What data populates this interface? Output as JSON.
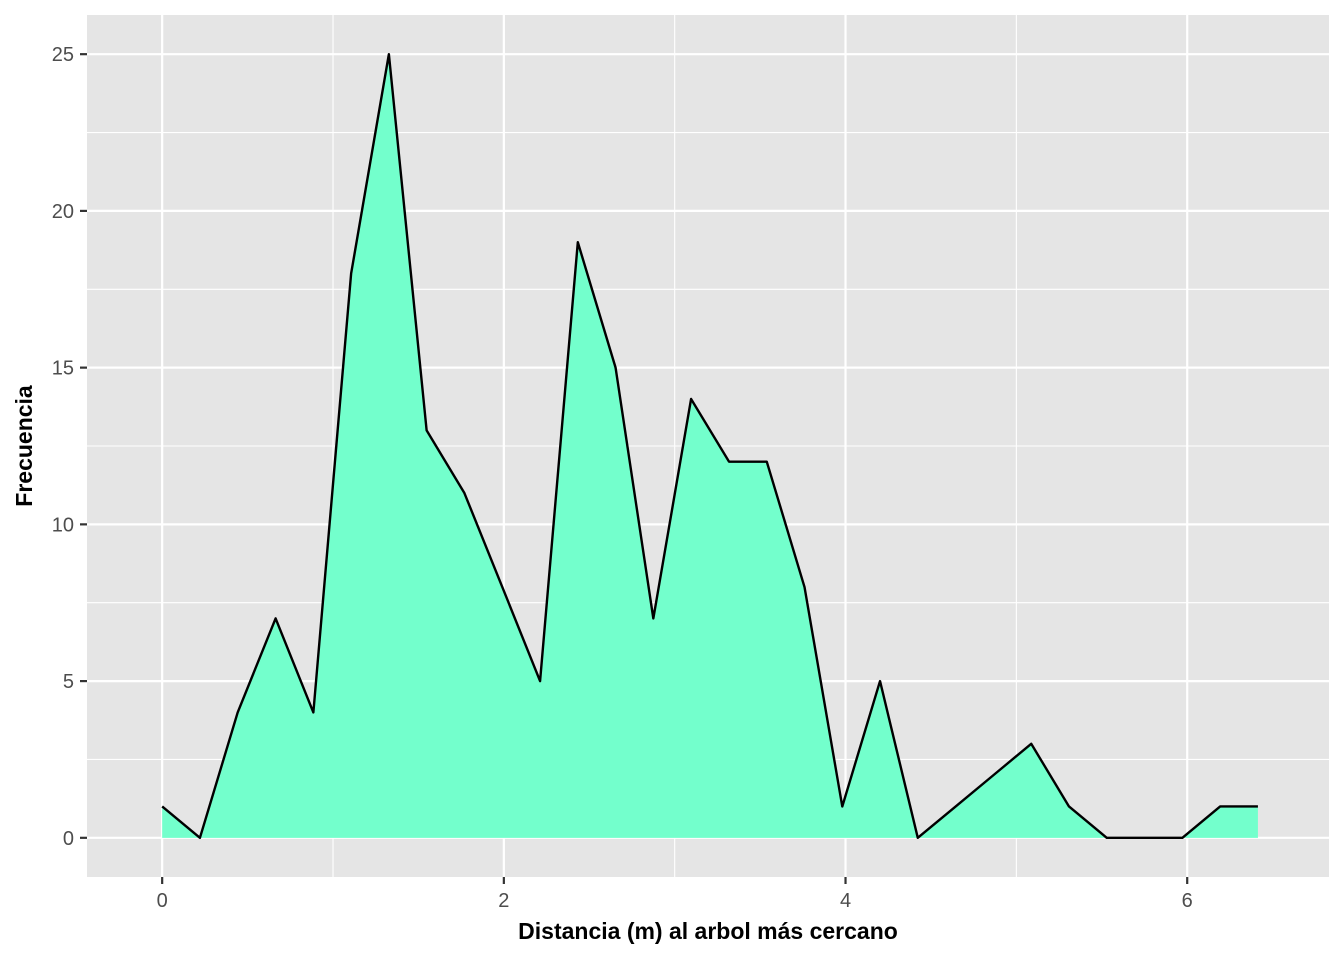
{
  "chart_data": {
    "type": "area",
    "xlabel": "Distancia (m) al arbol más cercano",
    "ylabel": "Frecuencia",
    "xlim": [
      -0.44,
      6.83
    ],
    "ylim": [
      -1.25,
      26.25
    ],
    "x_ticks": [
      0,
      2,
      4,
      6
    ],
    "x_tick_labels": [
      "0",
      "2",
      "4",
      "6"
    ],
    "y_ticks": [
      0,
      5,
      10,
      15,
      20,
      25
    ],
    "y_tick_labels": [
      "0",
      "5",
      "10",
      "15",
      "20",
      "25"
    ],
    "grid": true,
    "legend": "none",
    "x": [
      0,
      0.221,
      0.442,
      0.664,
      0.885,
      1.106,
      1.327,
      1.548,
      1.769,
      1.991,
      2.212,
      2.433,
      2.654,
      2.875,
      3.096,
      3.318,
      3.539,
      3.76,
      3.981,
      4.202,
      4.423,
      4.645,
      4.866,
      5.087,
      5.308,
      5.529,
      5.75,
      5.972,
      6.193,
      6.414
    ],
    "y": [
      1,
      0,
      4,
      7,
      4,
      18,
      25,
      13,
      11,
      8,
      5,
      19,
      15,
      7,
      14,
      12,
      12,
      8,
      1,
      5,
      0,
      1,
      2,
      3,
      1,
      0,
      0,
      0,
      1,
      1
    ],
    "fill_color": "#73FFCC",
    "line_color": "#000000",
    "panel_color": "#E5E5E5",
    "grid_color": "#FFFFFF"
  }
}
